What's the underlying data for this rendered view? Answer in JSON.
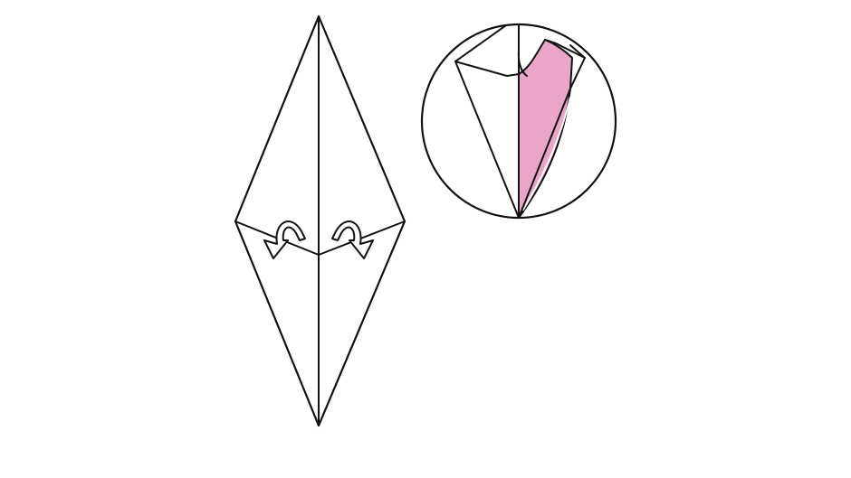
{
  "diagram": {
    "kind": "origami-fold-instruction",
    "texts": [],
    "colors": {
      "background": "#ffffff",
      "line": "#111111",
      "paper_front": "#ffffff",
      "paper_back_shade": "#eaa6c8",
      "crease_highlight": "#ffffff"
    },
    "main_model": {
      "shape": "kite-diamond",
      "arrows": [
        {
          "name": "fold-behind-arrow-left",
          "symbol": "curved-arrow-icon"
        },
        {
          "name": "fold-behind-arrow-right",
          "symbol": "curved-arrow-icon"
        }
      ]
    },
    "detail_view": {
      "shape": "circle-zoom",
      "shows": "result-after-fold"
    }
  }
}
